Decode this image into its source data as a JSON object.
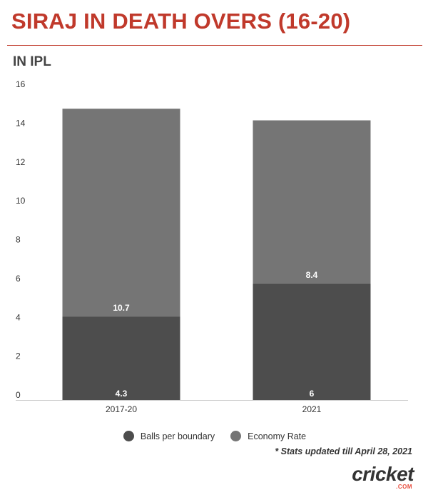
{
  "header": {
    "title": "SIRAJ IN DEATH OVERS (16-20)",
    "subtitle": "IN IPL",
    "accent_color": "#c0392b"
  },
  "chart_data": {
    "type": "bar",
    "stacked": true,
    "categories": [
      "2017-20",
      "2021"
    ],
    "series": [
      {
        "name": "Balls per boundary",
        "values": [
          4.3,
          6
        ],
        "labels": [
          "4.3",
          "6"
        ],
        "color": "#4d4d4d"
      },
      {
        "name": "Economy Rate",
        "values": [
          10.7,
          8.4
        ],
        "labels": [
          "10.7",
          "8.4"
        ],
        "color": "#757575"
      }
    ],
    "ylim": [
      0,
      16
    ],
    "yticks": [
      0,
      2,
      4,
      6,
      8,
      10,
      12,
      14,
      16
    ],
    "title": "SIRAJ IN DEATH OVERS (16-20)",
    "subtitle": "IN IPL",
    "xlabel": "",
    "ylabel": "",
    "grid": false,
    "legend_position": "bottom"
  },
  "footer": {
    "note": "* Stats updated till April 28, 2021",
    "logo_text": "cricket",
    "logo_suffix": ".COM",
    "logo_accent": "#e74c3c"
  }
}
